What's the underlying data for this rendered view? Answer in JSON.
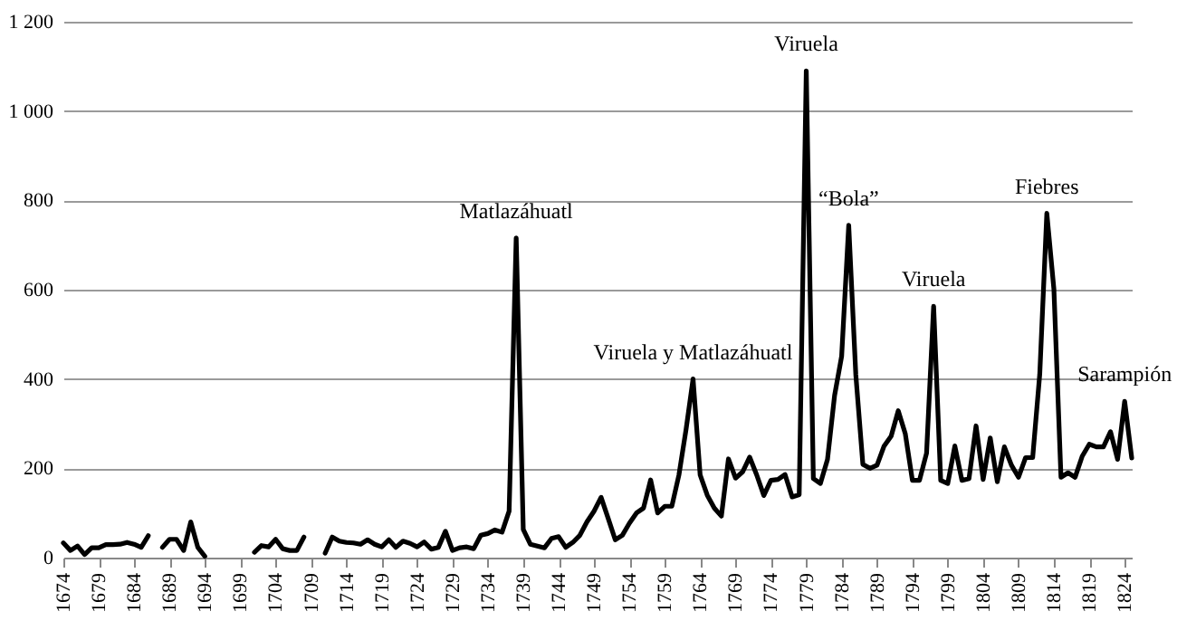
{
  "chart_data": {
    "type": "line",
    "x": [
      1674,
      1675,
      1676,
      1677,
      1678,
      1679,
      1680,
      1681,
      1682,
      1683,
      1684,
      1685,
      1686,
      1687,
      1688,
      1689,
      1690,
      1691,
      1692,
      1693,
      1694,
      1695,
      1696,
      1697,
      1698,
      1699,
      1700,
      1701,
      1702,
      1703,
      1704,
      1705,
      1706,
      1707,
      1708,
      1709,
      1710,
      1711,
      1712,
      1713,
      1714,
      1715,
      1716,
      1717,
      1718,
      1719,
      1720,
      1721,
      1722,
      1723,
      1724,
      1725,
      1726,
      1727,
      1728,
      1729,
      1730,
      1731,
      1732,
      1733,
      1734,
      1735,
      1736,
      1737,
      1738,
      1739,
      1740,
      1741,
      1742,
      1743,
      1744,
      1745,
      1746,
      1747,
      1748,
      1749,
      1750,
      1751,
      1752,
      1753,
      1754,
      1755,
      1756,
      1757,
      1758,
      1759,
      1760,
      1761,
      1762,
      1763,
      1764,
      1765,
      1766,
      1767,
      1768,
      1769,
      1770,
      1771,
      1772,
      1773,
      1774,
      1775,
      1776,
      1777,
      1778,
      1779,
      1780,
      1781,
      1782,
      1783,
      1784,
      1785,
      1786,
      1787,
      1788,
      1789,
      1790,
      1791,
      1792,
      1793,
      1794,
      1795,
      1796,
      1797,
      1798,
      1799,
      1800,
      1801,
      1802,
      1803,
      1804,
      1805,
      1806,
      1807,
      1808,
      1809,
      1810,
      1811,
      1812,
      1813,
      1814,
      1815,
      1816,
      1817,
      1818,
      1819,
      1820,
      1821,
      1822,
      1823,
      1824,
      1825
    ],
    "series": [
      {
        "color": "#000000",
        "values": [
          33,
          16,
          26,
          7,
          22,
          22,
          29,
          29,
          30,
          34,
          30,
          23,
          49,
          null,
          23,
          41,
          41,
          16,
          80,
          23,
          3,
          null,
          null,
          null,
          null,
          null,
          null,
          12,
          27,
          24,
          41,
          20,
          16,
          16,
          46,
          null,
          null,
          10,
          46,
          37,
          34,
          33,
          30,
          40,
          30,
          24,
          40,
          23,
          37,
          32,
          24,
          35,
          19,
          23,
          59,
          16,
          22,
          24,
          20,
          50,
          54,
          62,
          57,
          104,
          716,
          63,
          30,
          26,
          22,
          43,
          47,
          23,
          34,
          50,
          80,
          104,
          135,
          88,
          40,
          50,
          77,
          100,
          111,
          174,
          100,
          115,
          115,
          185,
          286,
          400,
          185,
          140,
          111,
          93,
          221,
          178,
          192,
          225,
          185,
          139,
          173,
          175,
          186,
          136,
          141,
          1090,
          177,
          166,
          220,
          363,
          451,
          744,
          410,
          209,
          200,
          207,
          250,
          272,
          329,
          277,
          173,
          173,
          234,
          563,
          173,
          166,
          250,
          173,
          177,
          295,
          175,
          268,
          170,
          248,
          207,
          180,
          224,
          224,
          411,
          771,
          601,
          180,
          190,
          180,
          227,
          254,
          248,
          248,
          282,
          220,
          350,
          223
        ]
      }
    ],
    "xlim": [
      1674,
      1825
    ],
    "xticks": [
      1674,
      1679,
      1684,
      1689,
      1694,
      1699,
      1704,
      1709,
      1714,
      1719,
      1724,
      1729,
      1734,
      1739,
      1744,
      1749,
      1754,
      1759,
      1764,
      1769,
      1774,
      1779,
      1784,
      1789,
      1794,
      1799,
      1804,
      1809,
      1814,
      1819,
      1824
    ],
    "ylim": [
      0,
      1200
    ],
    "yticks": [
      0,
      200,
      400,
      600,
      800,
      {
        "value": 1000,
        "label": "1 000"
      },
      {
        "value": 1200,
        "label": "1 200"
      }
    ],
    "grid": "y",
    "annotations": [
      {
        "text": "Matlazáhuatl",
        "x": 1738,
        "y": 716
      },
      {
        "text": "Viruela y Matlazáhuatl",
        "x": 1763,
        "y": 400
      },
      {
        "text": "Viruela",
        "x": 1779,
        "y": 1090
      },
      {
        "text": "“Bola”",
        "x": 1785,
        "y": 744
      },
      {
        "text": "Viruela",
        "x": 1797,
        "y": 563
      },
      {
        "text": "Fiebres",
        "x": 1813,
        "y": 771
      },
      {
        "text": "Sarampión",
        "x": 1824,
        "y": 350
      }
    ]
  }
}
